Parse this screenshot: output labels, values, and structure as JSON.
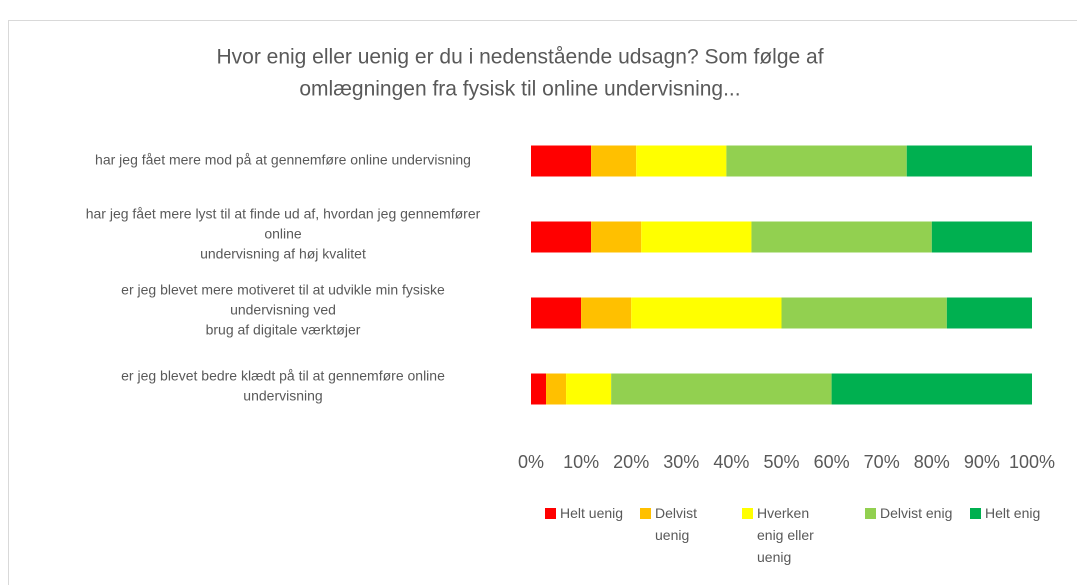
{
  "chart_data": {
    "type": "stacked_barh",
    "title": [
      "Hvor enig eller uenig er du i nedenstående udsagn? Som følge af",
      "omlægningen fra fysisk til online undervisning..."
    ],
    "categories": [
      [
        "har jeg fået mere mod på at gennemføre online undervisning"
      ],
      [
        "har jeg fået mere lyst til at finde ud af, hvordan jeg gennemfører",
        "online",
        "undervisning af høj kvalitet"
      ],
      [
        "er jeg blevet mere motiveret til at udvikle min fysiske",
        "undervisning ved",
        "brug af digitale værktøjer"
      ],
      [
        "er jeg blevet bedre klædt på til at gennemføre online",
        "undervisning"
      ]
    ],
    "series": [
      {
        "name": "Helt uenig",
        "color": "#ff0000",
        "values": [
          12,
          12,
          10,
          3
        ]
      },
      {
        "name": "Delvist uenig",
        "color": "#ffc000",
        "values": [
          9,
          10,
          10,
          4
        ]
      },
      {
        "name": "Hverken enig eller uenig",
        "color": "#ffff00",
        "values": [
          18,
          22,
          30,
          9
        ]
      },
      {
        "name": "Delvist enig",
        "color": "#92d050",
        "values": [
          36,
          36,
          33,
          44
        ]
      },
      {
        "name": "Helt enig",
        "color": "#00b050",
        "values": [
          25,
          20,
          17,
          40
        ]
      }
    ],
    "xlim": [
      0,
      100
    ],
    "xticks": [
      {
        "value": 0,
        "label": "0%"
      },
      {
        "value": 10,
        "label": "10%"
      },
      {
        "value": 20,
        "label": "20%"
      },
      {
        "value": 30,
        "label": "30%"
      },
      {
        "value": 40,
        "label": "40%"
      },
      {
        "value": 50,
        "label": "50%"
      },
      {
        "value": 60,
        "label": "60%"
      },
      {
        "value": 70,
        "label": "70%"
      },
      {
        "value": 80,
        "label": "80%"
      },
      {
        "value": 90,
        "label": "90%"
      },
      {
        "value": 100,
        "label": "100%"
      }
    ],
    "grid": false,
    "legend": "bottom"
  }
}
